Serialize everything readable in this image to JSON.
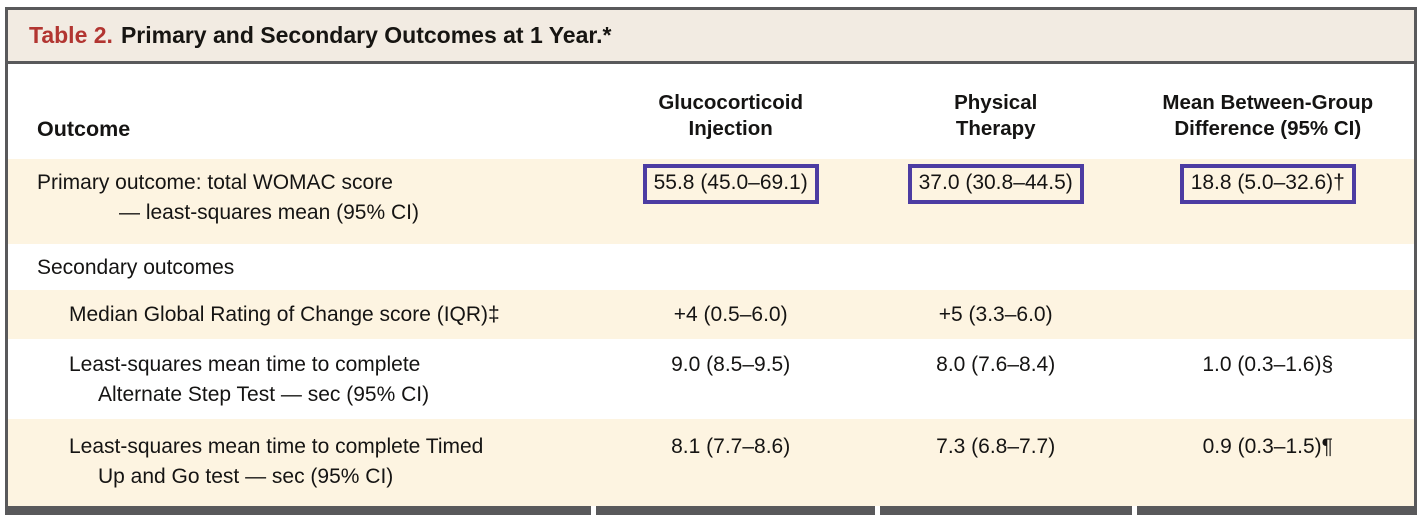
{
  "table": {
    "title": {
      "label": "Table 2.",
      "text": "Primary and Secondary Outcomes at 1 Year.*"
    },
    "columns": [
      {
        "line1": "Outcome",
        "line2": ""
      },
      {
        "line1": "Glucocorticoid",
        "line2": "Injection"
      },
      {
        "line1": "Physical",
        "line2": "Therapy"
      },
      {
        "line1": "Mean Between-Group",
        "line2": "Difference (95% CI)"
      }
    ],
    "rows": [
      {
        "label1": "Primary outcome: total WOMAC score",
        "label2": "— least-squares mean (95% CI)",
        "values": [
          "55.8 (45.0–69.1)",
          "37.0 (30.8–44.5)",
          "18.8 (5.0–32.6)†"
        ],
        "highlighted": "boxed-values"
      },
      {
        "label1": "Secondary outcomes",
        "label2": "",
        "values": [
          "",
          "",
          ""
        ]
      },
      {
        "label1": "Median Global Rating of Change score (IQR)‡",
        "label2": "",
        "values": [
          "+4 (0.5–6.0)",
          "+5 (3.3–6.0)",
          ""
        ]
      },
      {
        "label1": "Least-squares mean time to complete",
        "label2": "Alternate Step Test — sec (95% CI)",
        "values": [
          "9.0 (8.5–9.5)",
          "8.0 (7.6–8.4)",
          "1.0 (0.3–1.6)§"
        ]
      },
      {
        "label1": "Least-squares mean time to complete Timed",
        "label2": "Up and Go test — sec (95% CI)",
        "values": [
          "8.1 (7.7–8.6)",
          "7.3 (6.8–7.7)",
          "0.9 (0.3–1.5)¶"
        ]
      }
    ],
    "colors": {
      "title_label_red": "#b23531",
      "title_bar_bg": "#f2ebe2",
      "shaded_row_bg": "#fdf4e1",
      "highlight_box_purple": "#4c3ca2",
      "frame_border_gray": "#59595b"
    }
  }
}
